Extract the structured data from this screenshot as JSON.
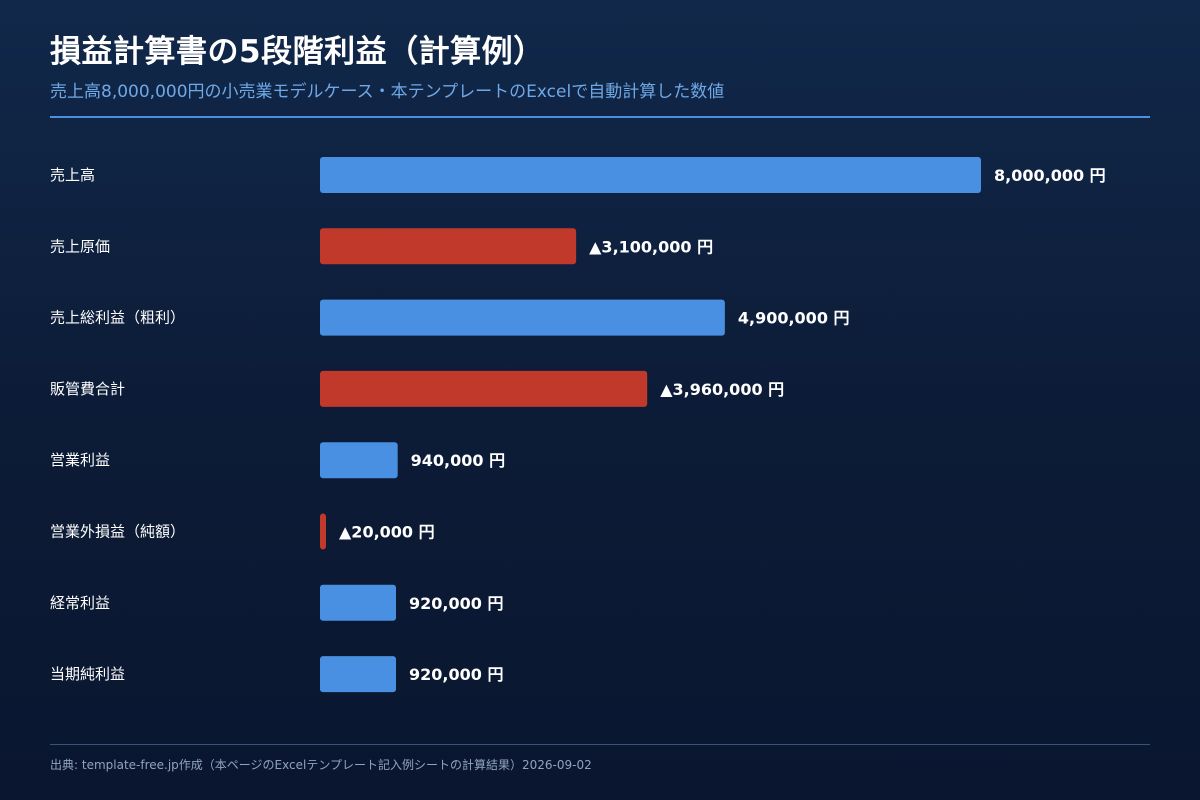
{
  "header": {
    "title": "損益計算書の5段階利益（計算例）",
    "subtitle": "売上高8,000,000円の小売業モデルケース・本テンプレートのExcelで自動計算した数値"
  },
  "footer": {
    "source": "出典: template-free.jp作成（本ページのExcelテンプレート記入例シートの計算結果）2026-09-02"
  },
  "colors": {
    "positive": "#4a90e2",
    "negative": "#c0392b"
  },
  "chart_data": {
    "type": "bar",
    "orientation": "horizontal",
    "categories": [
      "売上高",
      "売上原価",
      "売上総利益（粗利）",
      "販管費合計",
      "営業利益",
      "営業外損益（純額）",
      "経常利益",
      "当期純利益"
    ],
    "values": [
      8000000,
      3100000,
      4900000,
      3960000,
      940000,
      20000,
      920000,
      920000
    ],
    "negative": [
      false,
      true,
      false,
      true,
      false,
      true,
      false,
      false
    ],
    "data_labels": [
      "8,000,000 円",
      "▲3,100,000 円",
      "4,900,000 円",
      "▲3,960,000 円",
      "940,000 円",
      "▲20,000 円",
      "920,000 円",
      "920,000 円"
    ],
    "xlim": [
      0,
      8000000
    ],
    "grid": false,
    "legend": "none"
  }
}
